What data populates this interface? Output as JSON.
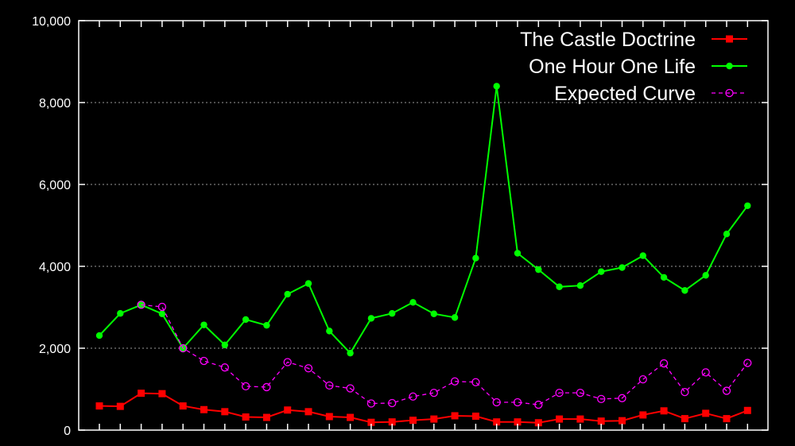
{
  "chart_data": {
    "type": "line",
    "title": "",
    "xlabel": "",
    "ylabel": "",
    "ylim": [
      0,
      10000
    ],
    "yticks": [
      0,
      2000,
      4000,
      6000,
      8000,
      10000
    ],
    "ytick_labels": [
      "0",
      "2,000",
      "4,000",
      "6,000",
      "8,000",
      "10,000"
    ],
    "grid": true,
    "legend_position": "top-right",
    "x": [
      1,
      2,
      3,
      4,
      5,
      6,
      7,
      8,
      9,
      10,
      11,
      12,
      13,
      14,
      15,
      16,
      17,
      18,
      19,
      20,
      21,
      22,
      23,
      24,
      25,
      26,
      27,
      28,
      29,
      30,
      31,
      32
    ],
    "series": [
      {
        "name": "The Castle Doctrine",
        "color": "#ff0000",
        "marker": "square",
        "dash": false,
        "values": [
          590,
          580,
          900,
          890,
          590,
          500,
          450,
          320,
          310,
          490,
          450,
          330,
          310,
          190,
          200,
          240,
          270,
          350,
          340,
          200,
          200,
          180,
          270,
          270,
          220,
          230,
          370,
          470,
          280,
          410,
          280,
          480
        ]
      },
      {
        "name": "One Hour One Life",
        "color": "#00ff00",
        "marker": "circle",
        "dash": false,
        "values": [
          2310,
          2850,
          3060,
          2840,
          2000,
          2570,
          2080,
          2700,
          2560,
          3320,
          3580,
          2420,
          1880,
          2730,
          2850,
          3120,
          2840,
          2750,
          4200,
          8400,
          4320,
          3920,
          3500,
          3530,
          3870,
          3970,
          4260,
          3730,
          3410,
          3780,
          4790,
          5480
        ]
      },
      {
        "name": "Expected Curve",
        "color": "#ff00ff",
        "marker": "open-circle",
        "dash": true,
        "values": [
          null,
          null,
          3060,
          3010,
          2000,
          1690,
          1530,
          1070,
          1050,
          1660,
          1510,
          1090,
          1020,
          650,
          660,
          820,
          910,
          1190,
          1170,
          680,
          680,
          620,
          910,
          910,
          760,
          780,
          1240,
          1630,
          930,
          1410,
          960,
          1640
        ]
      }
    ]
  }
}
